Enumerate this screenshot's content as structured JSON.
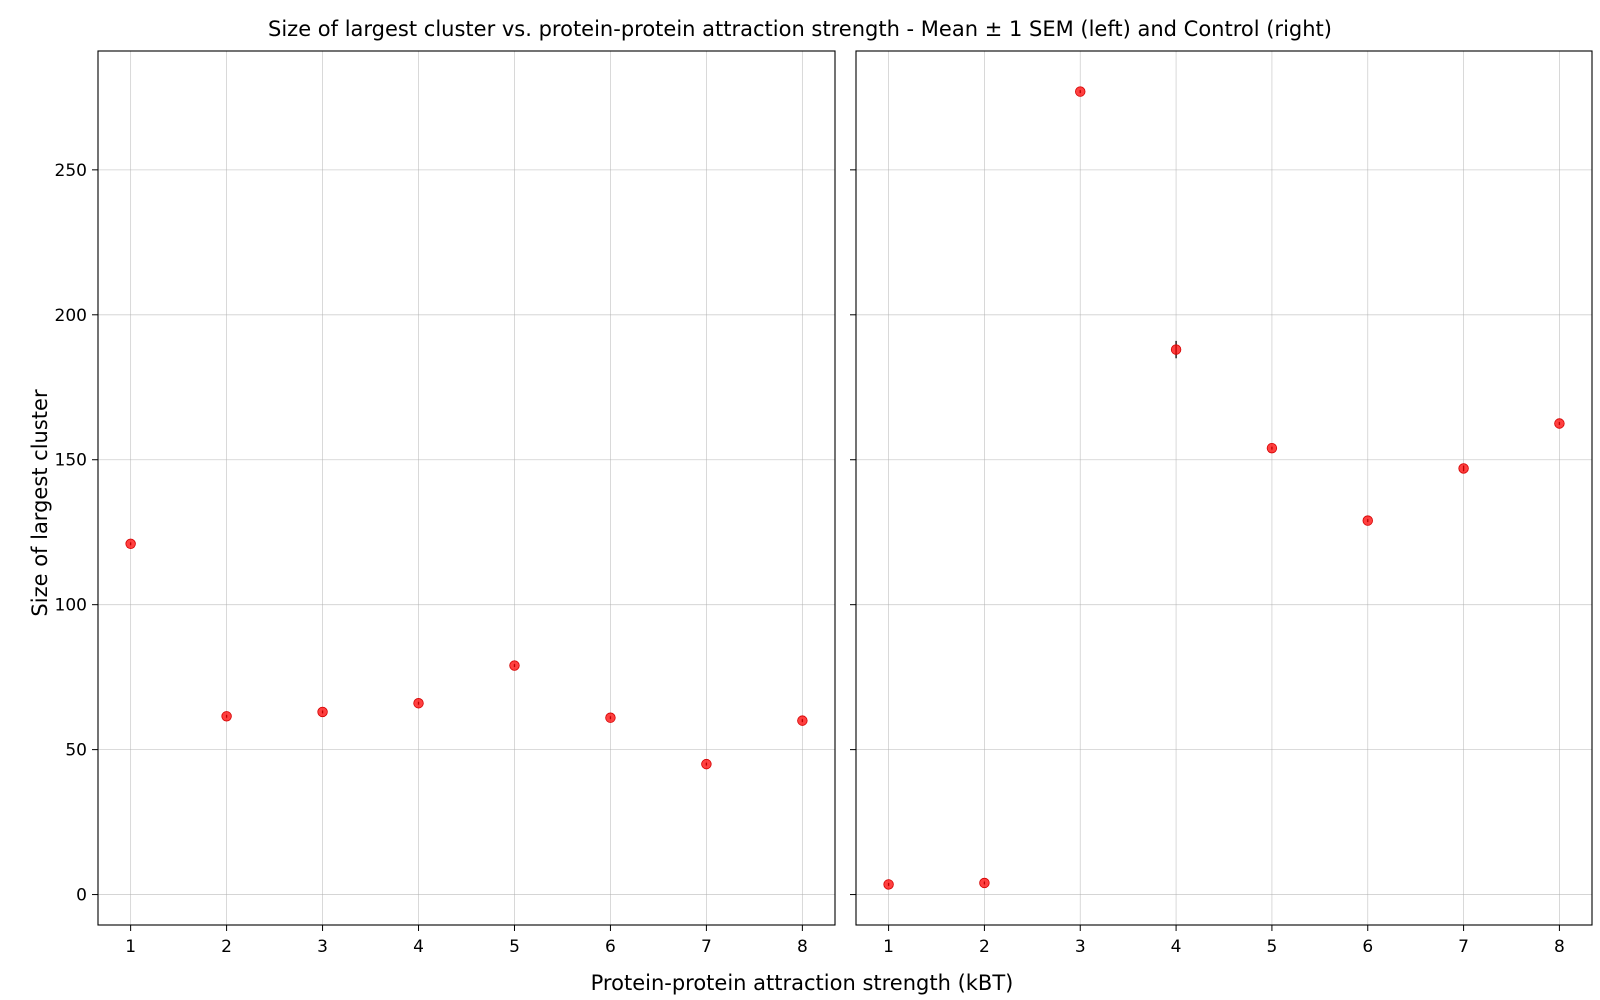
{
  "chart_data": {
    "type": "scatter",
    "title": "Size of largest cluster vs. protein-protein attraction strength - Mean ± 1 SEM (left) and Control (right)",
    "xlabel": "Protein-protein attraction strength (kBT)",
    "ylabel": "Size of largest cluster",
    "xlim": [
      0.66,
      8.34
    ],
    "ylim": [
      -10.5,
      291
    ],
    "xticks": [
      "1",
      "2",
      "3",
      "4",
      "5",
      "6",
      "7",
      "8"
    ],
    "yticks": [
      "0",
      "50",
      "100",
      "150",
      "200",
      "250"
    ],
    "grid": true,
    "sharey": true,
    "marker_color": "#ff0000",
    "errorbar_color": "#000000",
    "panels": [
      {
        "x": [
          1,
          2,
          3,
          4,
          5,
          6,
          7,
          8
        ],
        "y": [
          121,
          61.5,
          63,
          66,
          79,
          61,
          45,
          60
        ],
        "sem": [
          0.5,
          0.5,
          0.5,
          0.5,
          0.5,
          0.5,
          0.5,
          0.5
        ]
      },
      {
        "x": [
          1,
          2,
          3,
          4,
          5,
          6,
          7,
          8
        ],
        "y": [
          3.5,
          4,
          277,
          188,
          154,
          129,
          147,
          162.5
        ],
        "sem": [
          0.5,
          0.5,
          0.5,
          3,
          0.5,
          0.5,
          1,
          0.5
        ]
      }
    ]
  }
}
